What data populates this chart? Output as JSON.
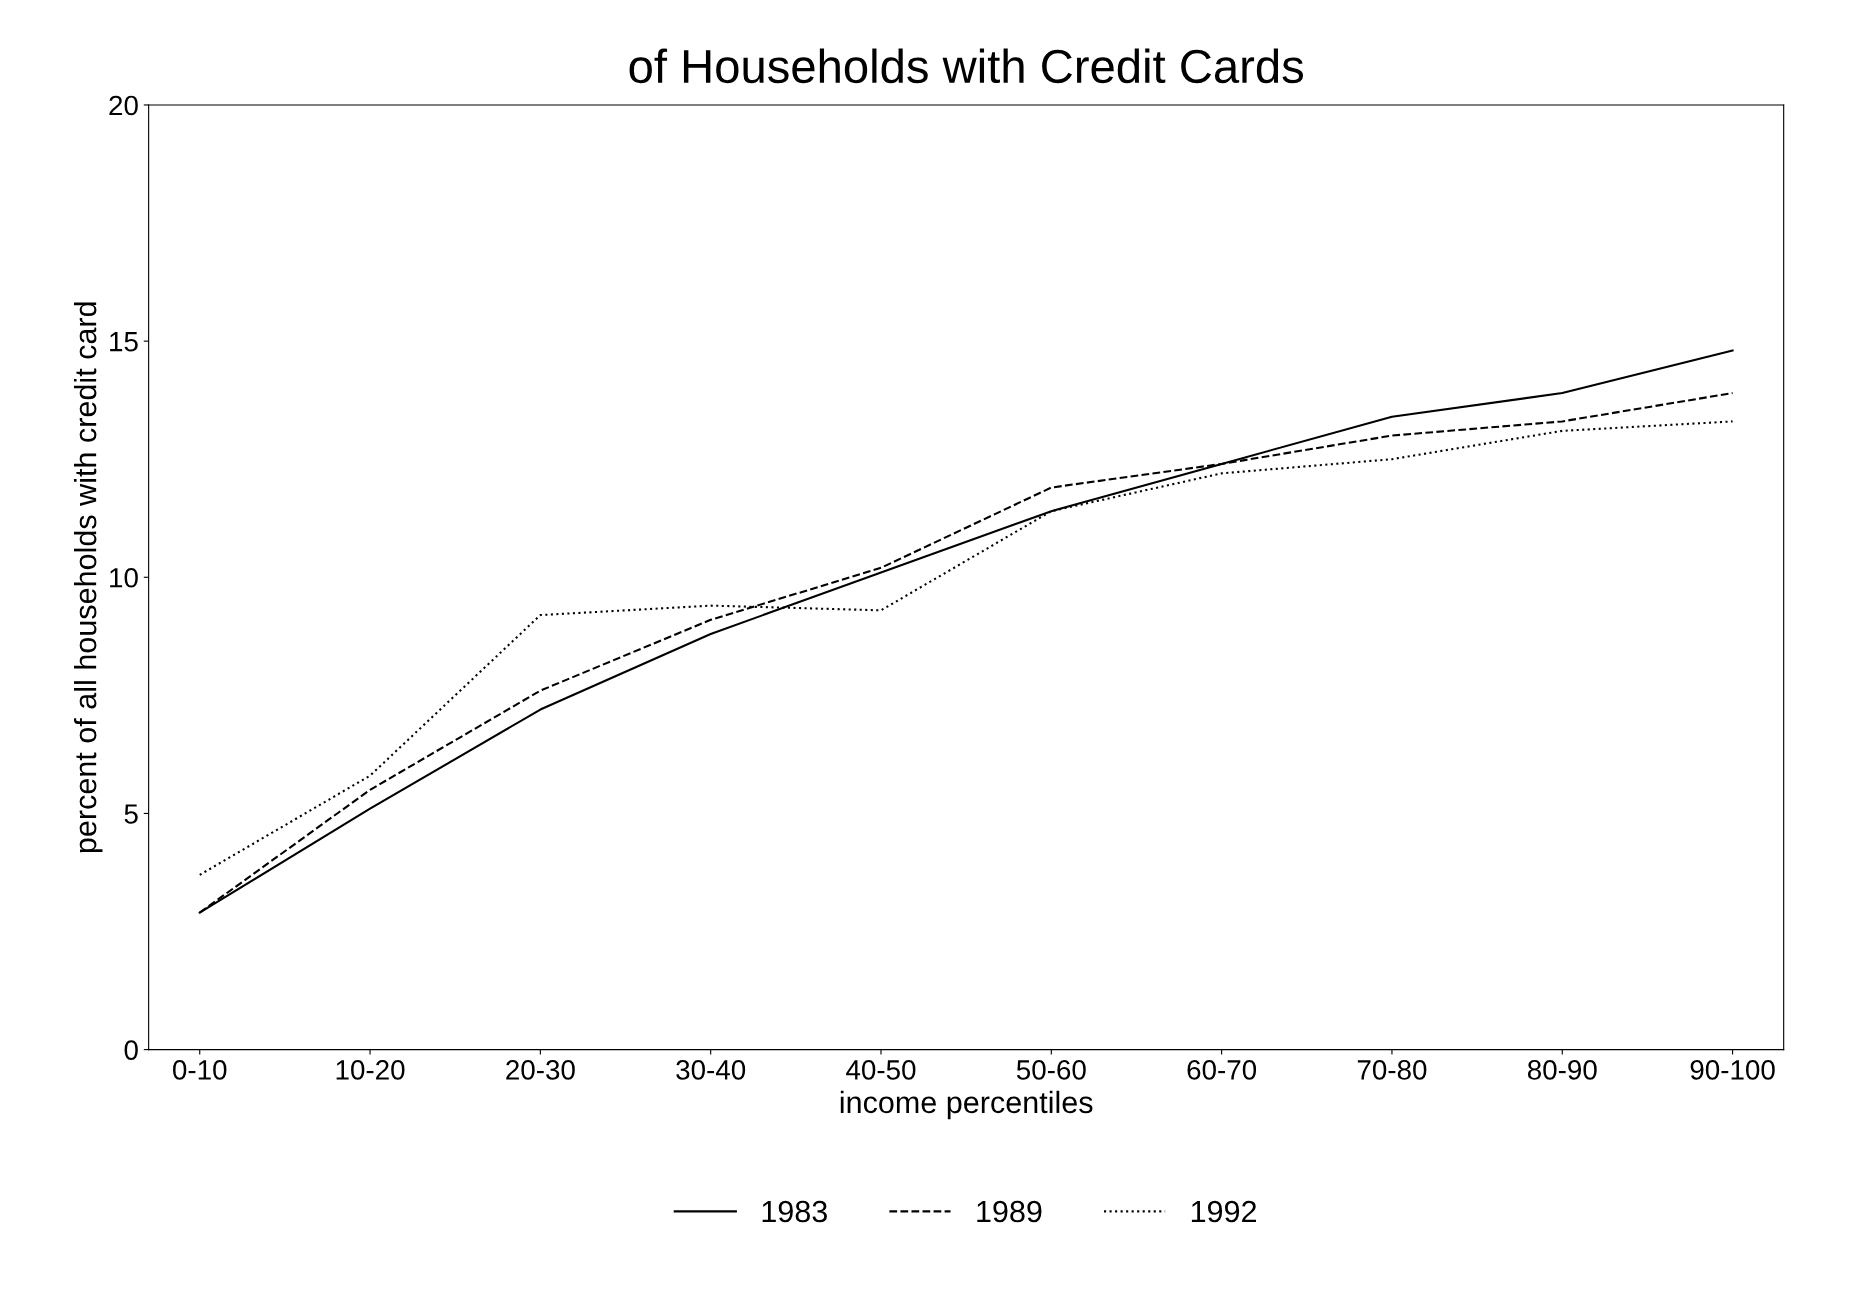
{
  "chart_data": {
    "type": "line",
    "title": "of Households with Credit Cards",
    "xlabel": "income percentiles",
    "ylabel": "percent of all households with credit card",
    "categories": [
      "0-10",
      "10-20",
      "20-30",
      "30-40",
      "40-50",
      "50-60",
      "60-70",
      "70-80",
      "80-90",
      "90-100"
    ],
    "series": [
      {
        "name": "1983",
        "color": "#000000",
        "line_style": "solid",
        "values": [
          2.9,
          5.1,
          7.2,
          8.8,
          10.1,
          11.4,
          12.4,
          13.4,
          13.9,
          14.8
        ]
      },
      {
        "name": "1989",
        "color": "#000000",
        "line_style": "dashed",
        "values": [
          2.9,
          5.5,
          7.6,
          9.1,
          10.2,
          11.9,
          12.4,
          13.0,
          13.3,
          13.9
        ]
      },
      {
        "name": "1992",
        "color": "#000000",
        "line_style": "dotted",
        "values": [
          3.7,
          5.8,
          9.2,
          9.4,
          9.3,
          11.4,
          12.2,
          12.5,
          13.1,
          13.3
        ]
      }
    ],
    "ylim": [
      0,
      20
    ],
    "yticks": [
      0,
      5,
      10,
      15,
      20
    ],
    "grid": false,
    "legend": "bottom",
    "marker": "none"
  }
}
